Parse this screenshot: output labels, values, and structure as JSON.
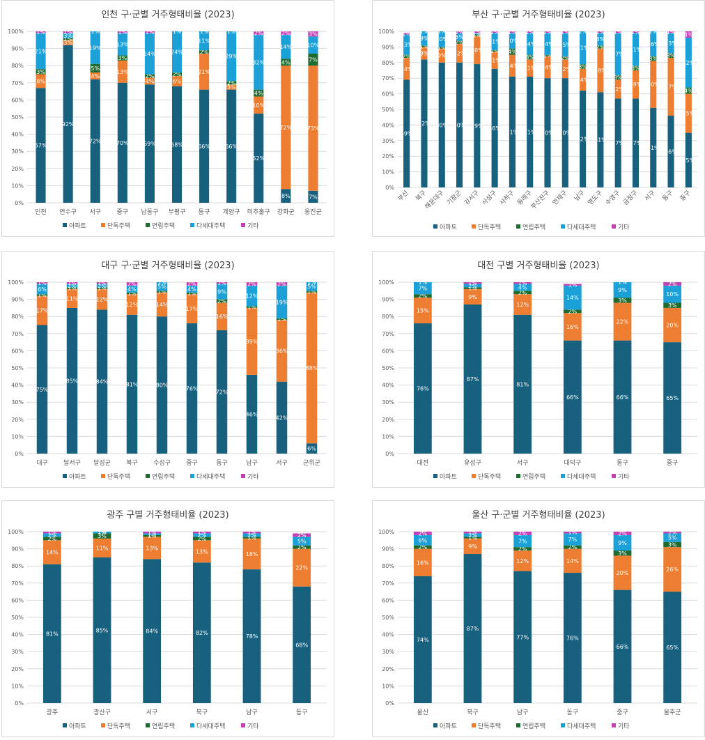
{
  "colors": {
    "apt": "#17607e",
    "single": "#ed7d31",
    "row": "#1f6b2f",
    "multi": "#1ba1d8",
    "other": "#c23fb5",
    "grid": "#d9d9d9",
    "text": "#404040"
  },
  "legend": [
    "아파트",
    "단독주택",
    "연립주택",
    "다세대주택",
    "기타"
  ],
  "chart_data": [
    {
      "type": "bar",
      "stacked": true,
      "title": "인천 구·군별 거주형태비율 (2023)",
      "categories": [
        "인천",
        "연수구",
        "서구",
        "중구",
        "남동구",
        "부평구",
        "동구",
        "계양구",
        "미추홀구",
        "강화군",
        "옹진군"
      ],
      "series": [
        {
          "name": "아파트",
          "values": [
            67,
            92,
            72,
            70,
            69,
            68,
            66,
            66,
            52,
            8,
            7
          ]
        },
        {
          "name": "단독주택",
          "values": [
            8,
            3,
            4,
            13,
            4,
            6,
            21,
            3,
            10,
            72,
            73
          ]
        },
        {
          "name": "연립주택",
          "values": [
            3,
            1,
            5,
            3,
            2,
            2,
            2,
            2,
            4,
            4,
            7
          ]
        },
        {
          "name": "다세대주택",
          "values": [
            21,
            3,
            19,
            13,
            24,
            24,
            11,
            29,
            32,
            14,
            10
          ]
        },
        {
          "name": "기타",
          "values": [
            1,
            1,
            1,
            1,
            1,
            1,
            1,
            1,
            2,
            2,
            3
          ]
        }
      ],
      "ylim": [
        0,
        100
      ],
      "yticks": [
        "0%",
        "10%",
        "20%",
        "30%",
        "40%",
        "50%",
        "60%",
        "70%",
        "80%",
        "90%",
        "100%"
      ],
      "legend_position": "bottom",
      "grid": true
    },
    {
      "type": "bar",
      "stacked": true,
      "title": "부산 구·군별 거주형태비율 (2023)",
      "categories": [
        "부산",
        "북구",
        "해운대구",
        "기장군",
        "강서구",
        "사상구",
        "사하구",
        "동래구",
        "부산진구",
        "연제구",
        "남구",
        "영도구",
        "수영구",
        "금정구",
        "서구",
        "동구",
        "중구"
      ],
      "series": [
        {
          "name": "아파트",
          "values": [
            69,
            82,
            80,
            80,
            79,
            76,
            71,
            71,
            70,
            70,
            62,
            61,
            57,
            57,
            51,
            46,
            35
          ]
        },
        {
          "name": "단독주택",
          "values": [
            14,
            8,
            9,
            12,
            18,
            11,
            14,
            11,
            14,
            12,
            14,
            28,
            12,
            18,
            30,
            37,
            25
          ]
        },
        {
          "name": "연립주택",
          "values": [
            2,
            1,
            1,
            2,
            1,
            1,
            4,
            3,
            1,
            2,
            3,
            2,
            3,
            3,
            3,
            3,
            4
          ]
        },
        {
          "name": "다세대주택",
          "values": [
            13,
            9,
            10,
            5,
            1,
            11,
            10,
            14,
            14,
            15,
            21,
            8,
            27,
            21,
            16,
            13,
            32
          ]
        },
        {
          "name": "기타",
          "values": [
            1,
            1,
            1,
            2,
            1,
            1,
            1,
            1,
            1,
            1,
            1,
            1,
            1,
            1,
            1,
            1,
            4
          ]
        }
      ],
      "ylim": [
        0,
        100
      ],
      "yticks": [
        "0%",
        "10%",
        "20%",
        "30%",
        "40%",
        "50%",
        "60%",
        "70%",
        "80%",
        "90%",
        "100%"
      ],
      "legend_position": "bottom",
      "grid": true
    },
    {
      "type": "bar",
      "stacked": true,
      "title": "대구 구·군별 거주형태비율 (2023)",
      "categories": [
        "대구",
        "달서구",
        "달성군",
        "북구",
        "수성구",
        "중구",
        "동구",
        "남구",
        "서구",
        "군위군"
      ],
      "series": [
        {
          "name": "아파트",
          "values": [
            75,
            85,
            84,
            81,
            80,
            76,
            72,
            46,
            42,
            6
          ]
        },
        {
          "name": "단독주택",
          "values": [
            17,
            11,
            12,
            12,
            14,
            17,
            16,
            39,
            36,
            88
          ]
        },
        {
          "name": "연립주택",
          "values": [
            1,
            1,
            1,
            1,
            1,
            1,
            2,
            1,
            1,
            1
          ]
        },
        {
          "name": "다세대주택",
          "values": [
            6,
            2,
            2,
            4,
            5,
            4,
            9,
            12,
            19,
            5
          ]
        },
        {
          "name": "기타",
          "values": [
            1,
            1,
            1,
            2,
            1,
            2,
            1,
            2,
            2,
            1
          ]
        }
      ],
      "ylim": [
        0,
        100
      ],
      "yticks": [
        "0%",
        "10%",
        "20%",
        "30%",
        "40%",
        "50%",
        "60%",
        "70%",
        "80%",
        "90%",
        "100%"
      ],
      "legend_position": "bottom",
      "grid": true
    },
    {
      "type": "bar",
      "stacked": true,
      "title": "대전 구별 거주형태비율 (2023)",
      "categories": [
        "대전",
        "유성구",
        "서구",
        "대덕구",
        "동구",
        "중구"
      ],
      "series": [
        {
          "name": "아파트",
          "values": [
            76,
            87,
            81,
            66,
            66,
            65
          ]
        },
        {
          "name": "단독주택",
          "values": [
            15,
            9,
            12,
            16,
            22,
            20
          ]
        },
        {
          "name": "연립주택",
          "values": [
            2,
            1,
            2,
            2,
            3,
            3
          ]
        },
        {
          "name": "다세대주택",
          "values": [
            7,
            2,
            4,
            14,
            9,
            10
          ]
        },
        {
          "name": "기타",
          "values": [
            1,
            1,
            1,
            1,
            1,
            2
          ]
        }
      ],
      "ylim": [
        0,
        100
      ],
      "yticks": [
        "0%",
        "10%",
        "20%",
        "30%",
        "40%",
        "50%",
        "60%",
        "70%",
        "80%",
        "90%",
        "100%"
      ],
      "legend_position": "bottom",
      "grid": true
    },
    {
      "type": "bar",
      "stacked": true,
      "title": "광주 구별 거주형태비율 (2023)",
      "categories": [
        "광주",
        "광산구",
        "서구",
        "북구",
        "남구",
        "동구"
      ],
      "series": [
        {
          "name": "아파트",
          "values": [
            81,
            85,
            84,
            82,
            78,
            68
          ]
        },
        {
          "name": "단독주택",
          "values": [
            14,
            11,
            13,
            13,
            18,
            22
          ]
        },
        {
          "name": "연립주택",
          "values": [
            2,
            3,
            1,
            2,
            1,
            2
          ]
        },
        {
          "name": "다세대주택",
          "values": [
            2,
            1,
            1,
            2,
            2,
            5
          ]
        },
        {
          "name": "기타",
          "values": [
            1,
            1,
            1,
            1,
            1,
            2
          ]
        }
      ],
      "ylim": [
        0,
        100
      ],
      "yticks": [
        "0%",
        "10%",
        "20%",
        "30%",
        "40%",
        "50%",
        "60%",
        "70%",
        "80%",
        "90%",
        "100%"
      ],
      "legend_position": "bottom",
      "grid": true
    },
    {
      "type": "bar",
      "stacked": true,
      "title": "울산 구·군별 거주형태비율 (2023)",
      "categories": [
        "울산",
        "북구",
        "남구",
        "동구",
        "중구",
        "울주군"
      ],
      "series": [
        {
          "name": "아파트",
          "values": [
            74,
            87,
            77,
            76,
            66,
            65
          ]
        },
        {
          "name": "단독주택",
          "values": [
            16,
            9,
            12,
            14,
            20,
            26
          ]
        },
        {
          "name": "연립주택",
          "values": [
            2,
            1,
            2,
            2,
            3,
            3
          ]
        },
        {
          "name": "다세대주택",
          "values": [
            6,
            2,
            7,
            7,
            9,
            5
          ]
        },
        {
          "name": "기타",
          "values": [
            2,
            1,
            2,
            1,
            2,
            2
          ]
        }
      ],
      "ylim": [
        0,
        100
      ],
      "yticks": [
        "0%",
        "10%",
        "20%",
        "30%",
        "40%",
        "50%",
        "60%",
        "70%",
        "80%",
        "90%",
        "100%"
      ],
      "legend_position": "bottom",
      "grid": true
    }
  ]
}
